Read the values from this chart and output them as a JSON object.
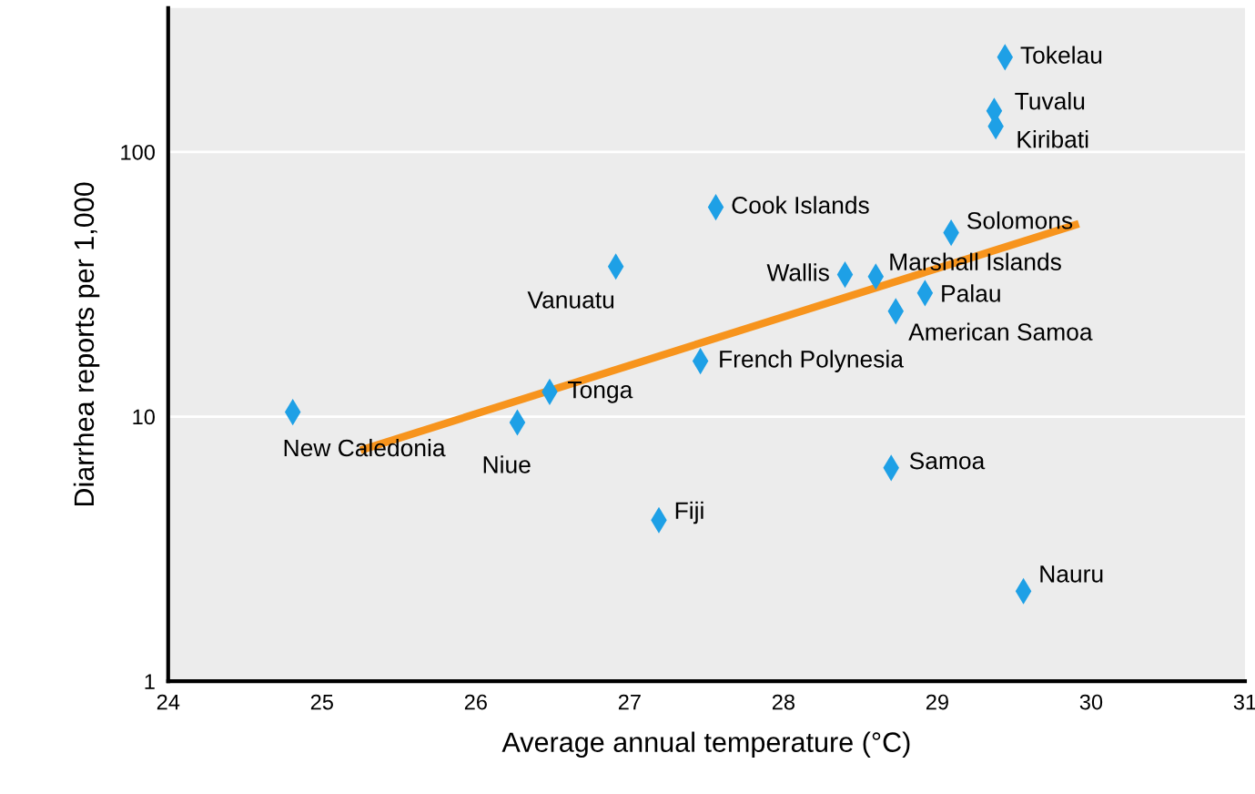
{
  "chart_data": {
    "type": "scatter",
    "xlabel": "Average annual temperature (°C)",
    "ylabel": "Diarrhea reports per 1,000",
    "log": "y",
    "xlim": [
      24,
      31
    ],
    "xticks": [
      24,
      25,
      26,
      27,
      28,
      29,
      30,
      31
    ],
    "ylim": [
      1,
      350
    ],
    "yticks": [
      1,
      10,
      100
    ],
    "grid": "y",
    "series": [
      {
        "marker": "diamond",
        "color": "#1ea0e6",
        "x": [
          24.81,
          26.27,
          26.48,
          26.91,
          27.19,
          27.46,
          27.56,
          28.4,
          28.6,
          28.7,
          28.73,
          28.92,
          29.09,
          29.44,
          29.37,
          29.38,
          29.56
        ],
        "values": [
          10.4,
          9.5,
          12.4,
          36.9,
          4.06,
          16.2,
          61.8,
          34.4,
          33.8,
          6.4,
          25,
          29.3,
          49.5,
          228,
          143,
          125,
          2.19
        ]
      },
      {
        "type": "line",
        "color": "#f7941d",
        "x": [
          25.25,
          29.92
        ],
        "values": [
          7.46,
          53.5
        ]
      }
    ],
    "annotations": [
      {
        "text": "New Caledonia",
        "x": 24.81,
        "y": 10.4
      },
      {
        "text": "Niue",
        "x": 26.27,
        "y": 9.5
      },
      {
        "text": "Tonga",
        "x": 26.48,
        "y": 12.4
      },
      {
        "text": "Vanuatu",
        "x": 26.91,
        "y": 36.9
      },
      {
        "text": "Fiji",
        "x": 27.19,
        "y": 4.06
      },
      {
        "text": "French Polynesia",
        "x": 27.46,
        "y": 16.2
      },
      {
        "text": "Cook Islands",
        "x": 27.56,
        "y": 61.8
      },
      {
        "text": "Wallis",
        "x": 28.4,
        "y": 34.4
      },
      {
        "text": "Marshall Islands",
        "x": 28.6,
        "y": 33.8
      },
      {
        "text": "Samoa",
        "x": 28.7,
        "y": 6.4
      },
      {
        "text": "American Samoa",
        "x": 28.73,
        "y": 25
      },
      {
        "text": "Palau",
        "x": 28.92,
        "y": 29.3
      },
      {
        "text": "Solomons",
        "x": 29.09,
        "y": 49.5
      },
      {
        "text": "Tokelau",
        "x": 29.44,
        "y": 228
      },
      {
        "text": "Tuvalu",
        "x": 29.37,
        "y": 143
      },
      {
        "text": "Kiribati",
        "x": 29.38,
        "y": 125
      },
      {
        "text": "Nauru",
        "x": 29.56,
        "y": 2.19
      }
    ]
  }
}
